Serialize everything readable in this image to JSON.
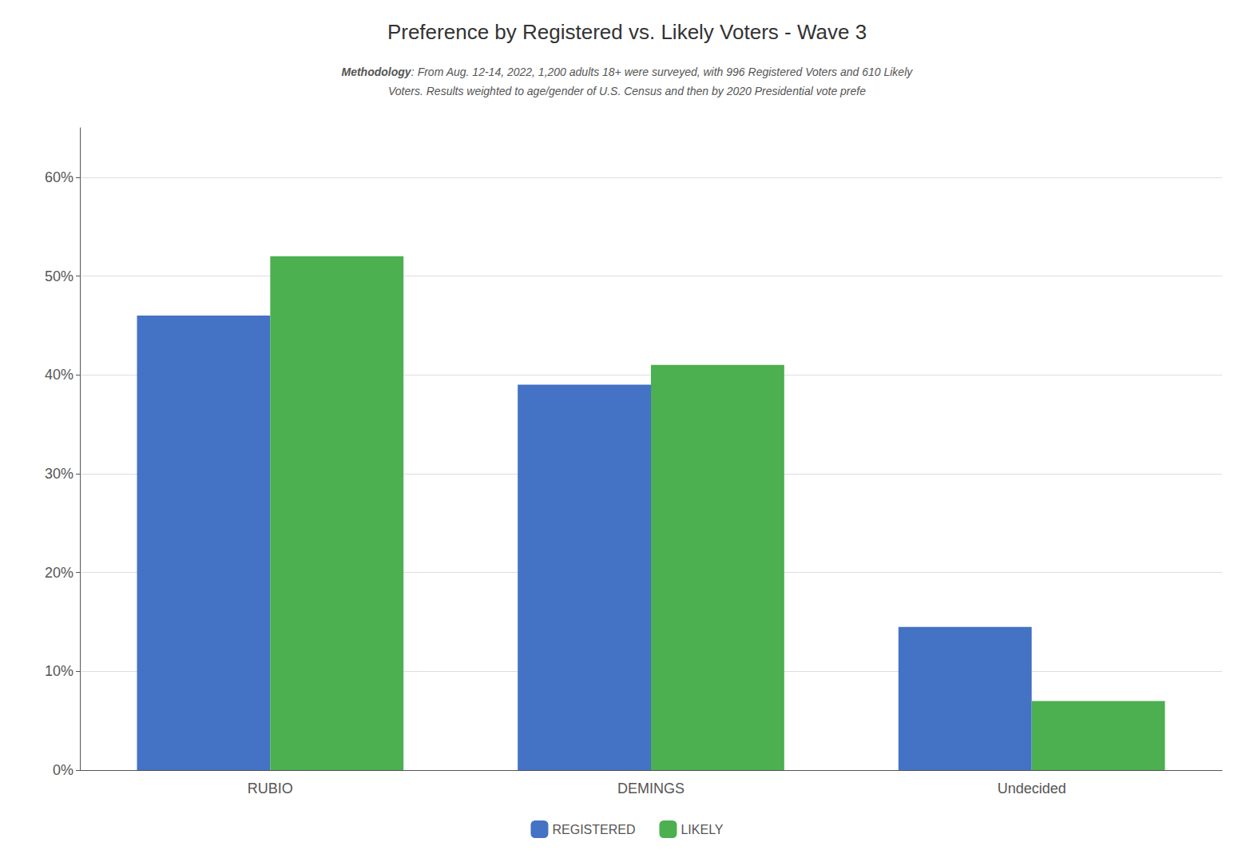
{
  "chart_data": {
    "type": "bar",
    "title": "Preference by Registered vs. Likely Voters - Wave 3",
    "subtitle": "Methodology: From Aug. 12-14, 2022, 1,200 adults 18+ were surveyed, with 996 Registered Voters and 610 Likely\nVoters. Results weighted to age/gender of U.S. Census and then by 2020 Presidential vote prefe",
    "categories": [
      "RUBIO",
      "DEMINGS",
      "Undecided"
    ],
    "series": [
      {
        "name": "REGISTERED",
        "color": "#4472C4",
        "values": [
          0.46,
          0.39,
          0.145
        ]
      },
      {
        "name": "LIKELY",
        "color": "#4CAF50",
        "values": [
          0.52,
          0.41,
          0.07
        ]
      }
    ],
    "ylim": [
      0,
      0.65
    ],
    "yticks": [
      {
        "value": 0.0,
        "label": "0%"
      },
      {
        "value": 0.1,
        "label": "10%"
      },
      {
        "value": 0.2,
        "label": "20%"
      },
      {
        "value": 0.3,
        "label": "30%"
      },
      {
        "value": 0.4,
        "label": "40%"
      },
      {
        "value": 0.5,
        "label": "50%"
      },
      {
        "value": 0.6,
        "label": "60%"
      }
    ],
    "grid": true,
    "legend": "bottom"
  }
}
